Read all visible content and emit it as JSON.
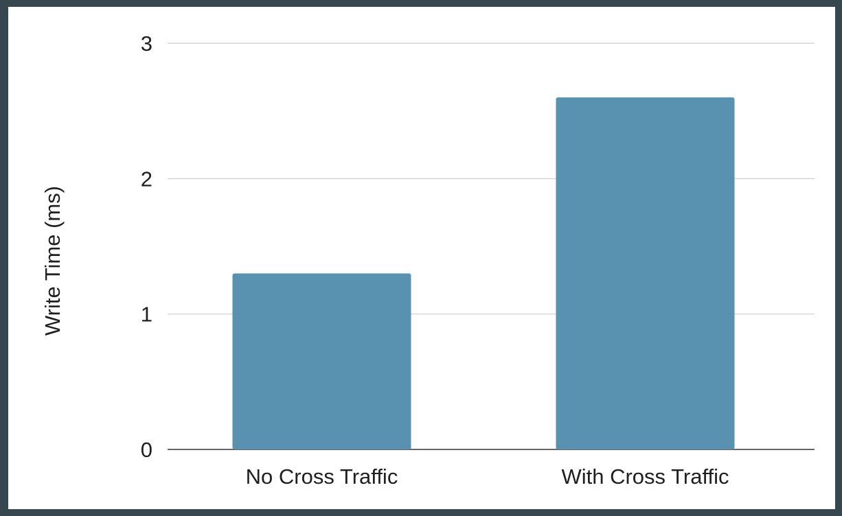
{
  "chart_data": {
    "type": "bar",
    "title": "",
    "xlabel": "",
    "ylabel": "Write Time (ms)",
    "ylim": [
      0,
      3
    ],
    "yticks": [
      0,
      1,
      2,
      3
    ],
    "grid": true,
    "categories": [
      "No Cross Traffic",
      "With Cross Traffic"
    ],
    "values": [
      1.3,
      2.6
    ],
    "bar_color": "#5991b0"
  }
}
